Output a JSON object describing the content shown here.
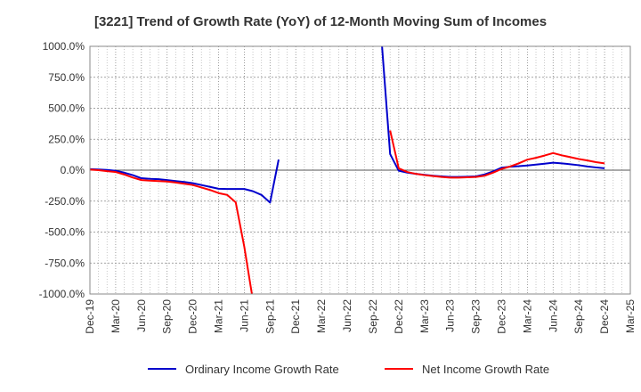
{
  "chart_data": {
    "type": "line",
    "title": "[3221]  Trend of Growth Rate (YoY) of 12-Month Moving Sum of Incomes",
    "xlabel": "",
    "ylabel": "",
    "ylim": [
      -1000,
      1000
    ],
    "yticks": [
      1000,
      750,
      500,
      250,
      0,
      -250,
      -500,
      -750,
      -1000
    ],
    "ytick_labels": [
      "1000.0%",
      "750.0%",
      "500.0%",
      "250.0%",
      "0.0%",
      "-250.0%",
      "-500.0%",
      "-750.0%",
      "-1000.0%"
    ],
    "x_range": [
      "2019-12",
      "2025-03"
    ],
    "x_tick_labels": [
      "Dec-19",
      "Mar-20",
      "Jun-20",
      "Sep-20",
      "Dec-20",
      "Mar-21",
      "Jun-21",
      "Sep-21",
      "Dec-21",
      "Mar-22",
      "Jun-22",
      "Sep-22",
      "Dec-22",
      "Mar-23",
      "Jun-23",
      "Sep-23",
      "Dec-23",
      "Mar-24",
      "Jun-24",
      "Sep-24",
      "Dec-24",
      "Mar-25"
    ],
    "grid": true,
    "legend_position": "bottom",
    "series": [
      {
        "name": "Ordinary Income Growth Rate",
        "color": "#0000cc",
        "points": [
          [
            "2019-12",
            8
          ],
          [
            "2020-01",
            5
          ],
          [
            "2020-02",
            2
          ],
          [
            "2020-03",
            -5
          ],
          [
            "2020-04",
            -20
          ],
          [
            "2020-05",
            -40
          ],
          [
            "2020-06",
            -65
          ],
          [
            "2020-07",
            -70
          ],
          [
            "2020-08",
            -73
          ],
          [
            "2020-09",
            -80
          ],
          [
            "2020-10",
            -88
          ],
          [
            "2020-11",
            -95
          ],
          [
            "2020-12",
            -105
          ],
          [
            "2021-01",
            -120
          ],
          [
            "2021-02",
            -135
          ],
          [
            "2021-03",
            -150
          ],
          [
            "2021-04",
            -152
          ],
          [
            "2021-05",
            -152
          ],
          [
            "2021-06",
            -152
          ],
          [
            "2021-07",
            -170
          ],
          [
            "2021-08",
            -200
          ],
          [
            "2021-09",
            -262
          ],
          [
            "2021-10",
            85
          ],
          null,
          [
            "2022-10",
            1050
          ],
          [
            "2022-11",
            130
          ],
          [
            "2022-12",
            -5
          ],
          [
            "2023-01",
            -20
          ],
          [
            "2023-02",
            -30
          ],
          [
            "2023-03",
            -38
          ],
          [
            "2023-04",
            -45
          ],
          [
            "2023-05",
            -50
          ],
          [
            "2023-06",
            -55
          ],
          [
            "2023-07",
            -55
          ],
          [
            "2023-08",
            -53
          ],
          [
            "2023-09",
            -50
          ],
          [
            "2023-10",
            -35
          ],
          [
            "2023-11",
            -10
          ],
          [
            "2023-12",
            20
          ],
          [
            "2024-01",
            28
          ],
          [
            "2024-02",
            32
          ],
          [
            "2024-03",
            38
          ],
          [
            "2024-04",
            45
          ],
          [
            "2024-05",
            52
          ],
          [
            "2024-06",
            60
          ],
          [
            "2024-07",
            55
          ],
          [
            "2024-08",
            48
          ],
          [
            "2024-09",
            40
          ],
          [
            "2024-10",
            30
          ],
          [
            "2024-11",
            22
          ],
          [
            "2024-12",
            15
          ]
        ]
      },
      {
        "name": "Net Income Growth Rate",
        "color": "#ff0000",
        "points": [
          [
            "2019-12",
            5
          ],
          [
            "2020-01",
            0
          ],
          [
            "2020-02",
            -8
          ],
          [
            "2020-03",
            -15
          ],
          [
            "2020-04",
            -35
          ],
          [
            "2020-05",
            -60
          ],
          [
            "2020-06",
            -80
          ],
          [
            "2020-07",
            -85
          ],
          [
            "2020-08",
            -88
          ],
          [
            "2020-09",
            -92
          ],
          [
            "2020-10",
            -100
          ],
          [
            "2020-11",
            -110
          ],
          [
            "2020-12",
            -120
          ],
          [
            "2021-01",
            -140
          ],
          [
            "2021-02",
            -160
          ],
          [
            "2021-03",
            -185
          ],
          [
            "2021-04",
            -200
          ],
          [
            "2021-05",
            -260
          ],
          [
            "2021-06",
            -620
          ],
          [
            "2021-07",
            -1050
          ],
          null,
          [
            "2022-11",
            320
          ],
          [
            "2022-12",
            15
          ],
          [
            "2023-01",
            -15
          ],
          [
            "2023-02",
            -30
          ],
          [
            "2023-03",
            -40
          ],
          [
            "2023-04",
            -48
          ],
          [
            "2023-05",
            -55
          ],
          [
            "2023-06",
            -60
          ],
          [
            "2023-07",
            -60
          ],
          [
            "2023-08",
            -58
          ],
          [
            "2023-09",
            -55
          ],
          [
            "2023-10",
            -45
          ],
          [
            "2023-11",
            -20
          ],
          [
            "2023-12",
            10
          ],
          [
            "2024-01",
            30
          ],
          [
            "2024-02",
            55
          ],
          [
            "2024-03",
            85
          ],
          [
            "2024-04",
            100
          ],
          [
            "2024-05",
            118
          ],
          [
            "2024-06",
            138
          ],
          [
            "2024-07",
            120
          ],
          [
            "2024-08",
            105
          ],
          [
            "2024-09",
            90
          ],
          [
            "2024-10",
            78
          ],
          [
            "2024-11",
            65
          ],
          [
            "2024-12",
            55
          ]
        ]
      }
    ]
  }
}
